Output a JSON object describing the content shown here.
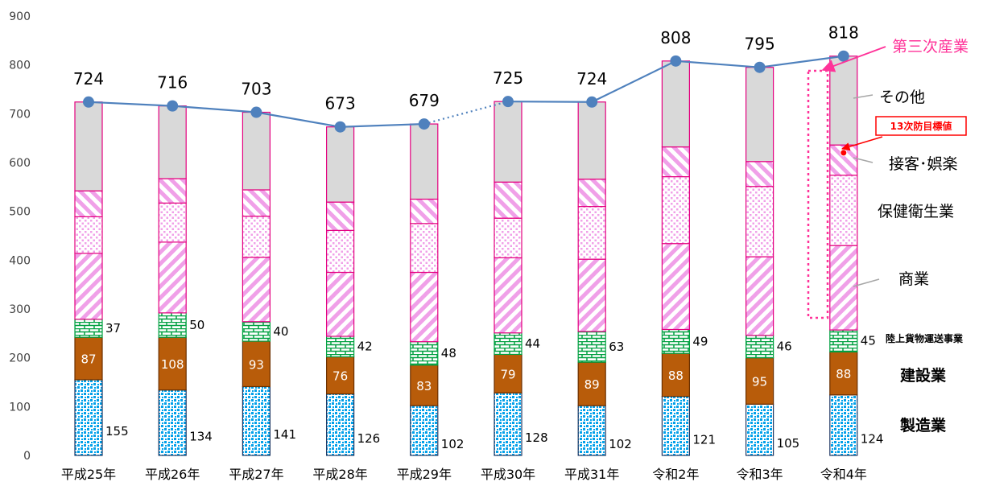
{
  "chart_data": {
    "type": "bar",
    "stacked": true,
    "ylim": [
      0,
      900
    ],
    "yticks": [
      0,
      100,
      200,
      300,
      400,
      500,
      600,
      700,
      800,
      900
    ],
    "grid": false,
    "categories": [
      "平成25年",
      "平成26年",
      "平成27年",
      "平成28年",
      "平成29年",
      "平成30年",
      "平成31年",
      "令和2年",
      "令和3年",
      "令和4年"
    ],
    "series": [
      {
        "name": "製造業",
        "values": [
          155,
          134,
          141,
          126,
          102,
          128,
          102,
          121,
          105,
          124
        ],
        "labels_shown": true
      },
      {
        "name": "建設業",
        "values": [
          87,
          108,
          93,
          76,
          83,
          79,
          89,
          88,
          95,
          88
        ],
        "labels_shown": true
      },
      {
        "name": "陸上貨物運送事業",
        "values": [
          37,
          50,
          40,
          42,
          48,
          44,
          63,
          49,
          46,
          45
        ],
        "labels_shown": true
      },
      {
        "name": "商業",
        "values": [
          135,
          145,
          132,
          131,
          142,
          154,
          148,
          176,
          161,
          173
        ],
        "labels_shown": false
      },
      {
        "name": "保健衛生業",
        "values": [
          75,
          80,
          84,
          86,
          100,
          81,
          108,
          137,
          144,
          144
        ],
        "labels_shown": false
      },
      {
        "name": "接客・娯楽",
        "values": [
          53,
          50,
          54,
          58,
          50,
          74,
          56,
          61,
          51,
          62
        ],
        "labels_shown": false
      },
      {
        "name": "その他",
        "values": [
          182,
          149,
          159,
          154,
          154,
          165,
          158,
          176,
          193,
          182
        ],
        "labels_shown": false
      }
    ],
    "line": {
      "values": [
        724,
        716,
        703,
        673,
        679,
        725,
        724,
        808,
        795,
        818
      ],
      "dotted_segment": [
        4,
        5
      ],
      "color": "#4f81bd"
    },
    "annotations": {
      "tertiary_label": "第三次産業",
      "target_label": "13次防目標値",
      "target_value": 620,
      "other_label": "その他",
      "hospitality_label": "接客･娯楽",
      "health_label": "保健衛生業",
      "commerce_label": "商業",
      "transport_label": "陸上貨物運送事業",
      "construction_label": "建設業",
      "manufacturing_label": "製造業"
    },
    "colors": {
      "manufacturing": "#00a0e9",
      "construction": "#b85c0a",
      "transport": "#00a040",
      "tertiary_border": "#e4007f",
      "tertiary_pattern": "#f0a0e8",
      "other": "#d9d9d9",
      "accent": "#ff3399"
    }
  }
}
